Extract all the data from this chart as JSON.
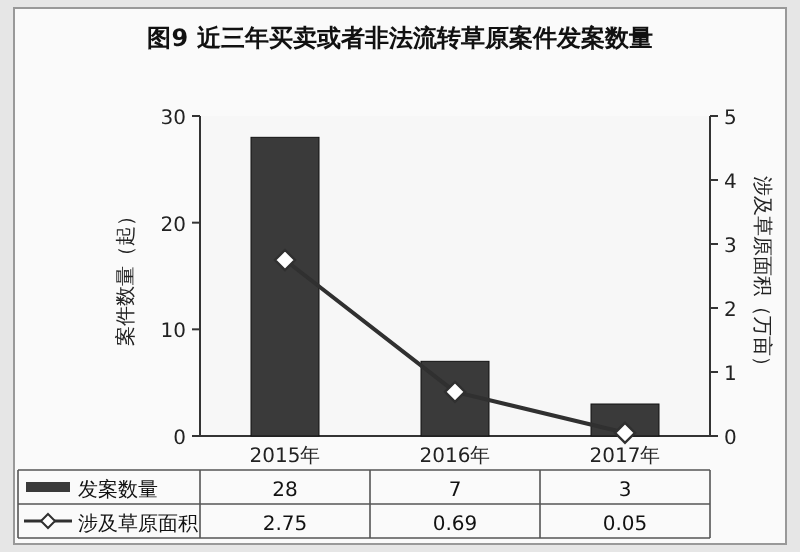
{
  "chart_data": {
    "type": "bar",
    "title": "图9 近三年买卖或者非法流转草原案件发案数量",
    "ylabel": "案件数量（起）",
    "y2label": "涉及草原面积（万亩）",
    "categories": [
      "2015年",
      "2016年",
      "2017年"
    ],
    "series": [
      {
        "name": "发案数量",
        "color": "#3a3a3a",
        "values": [
          28,
          7,
          3
        ]
      },
      {
        "name": "涉及草原面积",
        "type": "line",
        "axis": "y2",
        "color": "#303030",
        "values": [
          2.75,
          0.69,
          0.05
        ]
      }
    ],
    "ylim": [
      0,
      30
    ],
    "yticks": [
      0,
      10,
      20,
      30
    ],
    "y2lim": [
      0,
      5
    ],
    "y2ticks": [
      0,
      1,
      2,
      3,
      4,
      5
    ],
    "marker": "diamond",
    "data_labels": true,
    "legend": "bottom",
    "grid": false
  }
}
